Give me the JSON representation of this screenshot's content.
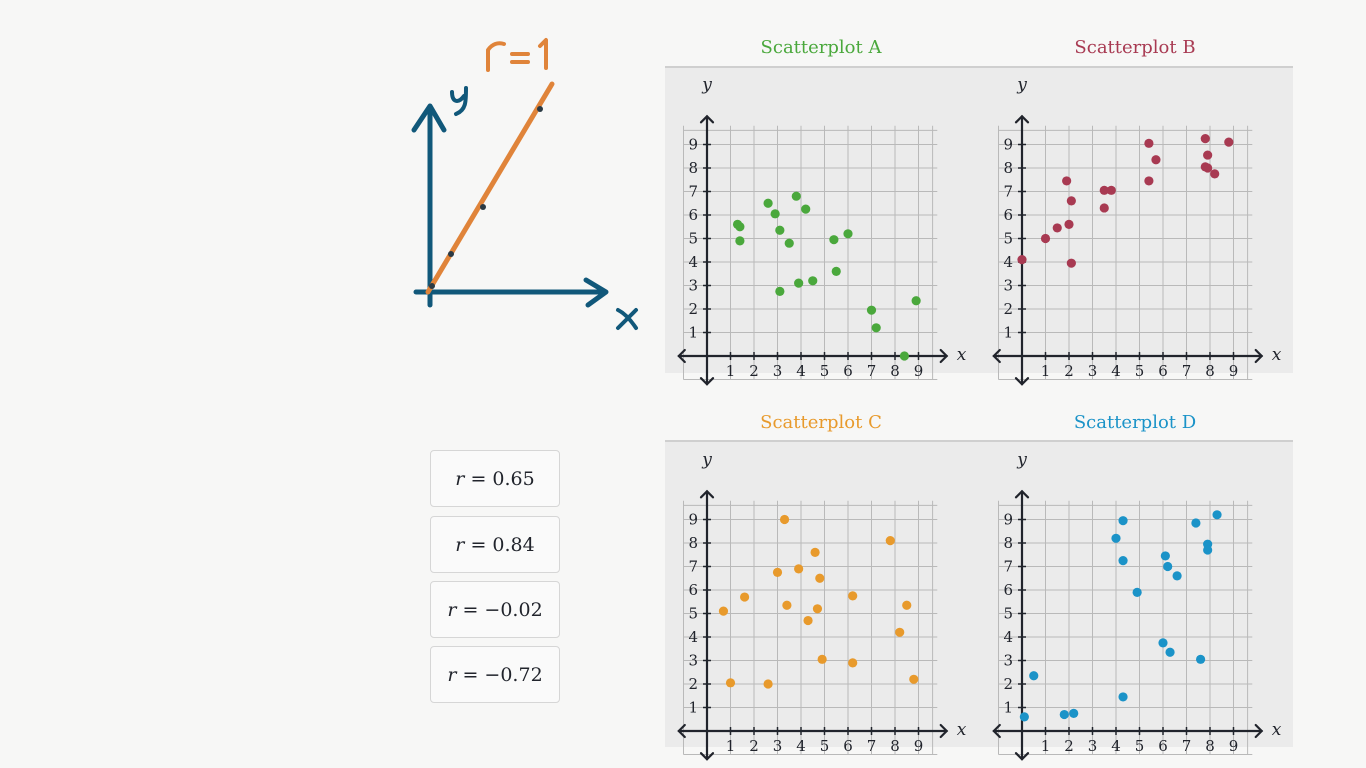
{
  "sketch": {
    "r_label": "r=1",
    "y_label": "y",
    "x_label": "x",
    "colors": {
      "axes": "#11587a",
      "line": "#e0843a",
      "points": "#2b3a44"
    }
  },
  "r_cards": [
    {
      "prefix": "r",
      "value": "= 0.65"
    },
    {
      "prefix": "r",
      "value": "= 0.84"
    },
    {
      "prefix": "r",
      "value": "= −0.02"
    },
    {
      "prefix": "r",
      "value": "= −0.72"
    }
  ],
  "chart_data": [
    {
      "type": "scatter",
      "title": "Scatterplot A",
      "color": "#4aa83c",
      "xlabel": "x",
      "ylabel": "y",
      "xlim": [
        0,
        9
      ],
      "ylim": [
        0,
        9
      ],
      "grid": true,
      "xticks": [
        1,
        2,
        3,
        4,
        5,
        6,
        7,
        8,
        9
      ],
      "yticks": [
        1,
        2,
        3,
        4,
        5,
        6,
        7,
        8,
        9
      ],
      "points": [
        [
          1.3,
          5.6
        ],
        [
          1.4,
          5.5
        ],
        [
          1.4,
          4.9
        ],
        [
          2.6,
          6.5
        ],
        [
          2.9,
          6.05
        ],
        [
          3.1,
          5.35
        ],
        [
          3.5,
          4.8
        ],
        [
          3.8,
          6.8
        ],
        [
          4.2,
          6.25
        ],
        [
          3.1,
          2.75
        ],
        [
          3.9,
          3.1
        ],
        [
          4.5,
          3.2
        ],
        [
          5.4,
          4.95
        ],
        [
          5.5,
          3.6
        ],
        [
          6.0,
          5.2
        ],
        [
          7.0,
          1.95
        ],
        [
          7.2,
          1.2
        ],
        [
          8.4,
          0.0
        ],
        [
          8.9,
          2.35
        ]
      ]
    },
    {
      "type": "scatter",
      "title": "Scatterplot B",
      "color": "#a83a52",
      "xlabel": "x",
      "ylabel": "y",
      "xlim": [
        0,
        9
      ],
      "ylim": [
        0,
        9
      ],
      "grid": true,
      "xticks": [
        1,
        2,
        3,
        4,
        5,
        6,
        7,
        8,
        9
      ],
      "yticks": [
        1,
        2,
        3,
        4,
        5,
        6,
        7,
        8,
        9
      ],
      "points": [
        [
          0.0,
          4.1
        ],
        [
          1.0,
          5.0
        ],
        [
          1.5,
          5.45
        ],
        [
          1.9,
          7.45
        ],
        [
          2.0,
          5.6
        ],
        [
          2.1,
          6.6
        ],
        [
          2.1,
          3.95
        ],
        [
          3.5,
          7.05
        ],
        [
          3.5,
          6.3
        ],
        [
          3.8,
          7.05
        ],
        [
          5.4,
          9.05
        ],
        [
          5.4,
          7.45
        ],
        [
          5.7,
          8.35
        ],
        [
          7.8,
          9.25
        ],
        [
          7.8,
          8.05
        ],
        [
          7.9,
          8.55
        ],
        [
          7.9,
          8.0
        ],
        [
          8.2,
          7.75
        ],
        [
          8.8,
          9.1
        ]
      ]
    },
    {
      "type": "scatter",
      "title": "Scatterplot C",
      "color": "#e89a2c",
      "xlabel": "x",
      "ylabel": "y",
      "xlim": [
        0,
        9
      ],
      "ylim": [
        0,
        9
      ],
      "grid": true,
      "xticks": [
        1,
        2,
        3,
        4,
        5,
        6,
        7,
        8,
        9
      ],
      "yticks": [
        1,
        2,
        3,
        4,
        5,
        6,
        7,
        8,
        9
      ],
      "points": [
        [
          0.7,
          5.1
        ],
        [
          1.0,
          2.05
        ],
        [
          1.6,
          5.7
        ],
        [
          2.6,
          2.0
        ],
        [
          3.0,
          6.75
        ],
        [
          3.3,
          9.0
        ],
        [
          3.4,
          5.35
        ],
        [
          3.9,
          6.9
        ],
        [
          4.3,
          4.7
        ],
        [
          4.6,
          7.6
        ],
        [
          4.7,
          5.2
        ],
        [
          4.8,
          6.5
        ],
        [
          4.9,
          3.05
        ],
        [
          6.2,
          5.75
        ],
        [
          6.2,
          2.9
        ],
        [
          7.8,
          8.1
        ],
        [
          8.2,
          4.2
        ],
        [
          8.5,
          5.35
        ],
        [
          8.8,
          2.2
        ]
      ]
    },
    {
      "type": "scatter",
      "title": "Scatterplot D",
      "color": "#1b93c8",
      "xlabel": "x",
      "ylabel": "y",
      "xlim": [
        0,
        9
      ],
      "ylim": [
        0,
        9
      ],
      "grid": true,
      "xticks": [
        1,
        2,
        3,
        4,
        5,
        6,
        7,
        8,
        9
      ],
      "yticks": [
        1,
        2,
        3,
        4,
        5,
        6,
        7,
        8,
        9
      ],
      "points": [
        [
          0.1,
          0.6
        ],
        [
          0.5,
          2.35
        ],
        [
          1.8,
          0.7
        ],
        [
          2.2,
          0.75
        ],
        [
          4.0,
          8.2
        ],
        [
          4.3,
          8.95
        ],
        [
          4.3,
          7.25
        ],
        [
          4.3,
          1.45
        ],
        [
          4.9,
          5.9
        ],
        [
          6.0,
          3.75
        ],
        [
          6.1,
          7.45
        ],
        [
          6.2,
          7.0
        ],
        [
          6.3,
          3.35
        ],
        [
          6.6,
          6.6
        ],
        [
          7.4,
          8.85
        ],
        [
          7.6,
          3.05
        ],
        [
          7.9,
          7.95
        ],
        [
          7.9,
          7.7
        ],
        [
          8.3,
          9.2
        ]
      ]
    }
  ]
}
